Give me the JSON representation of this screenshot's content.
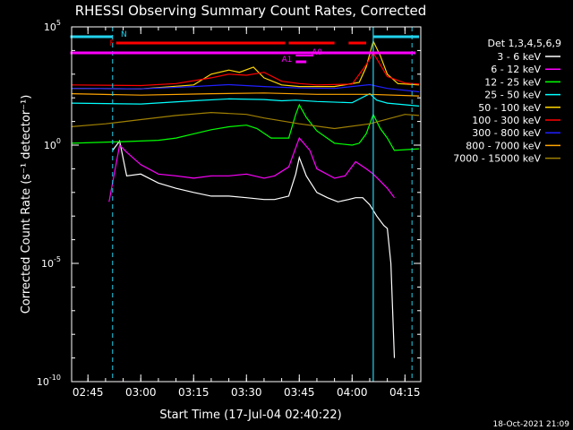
{
  "colors": {
    "background": "#000000",
    "axes": "#ffffff",
    "cyan": "#22d3ee",
    "red": "#ff0000",
    "magenta": "#ff00ff"
  },
  "chart_data": {
    "type": "line",
    "title": "RHESSI Observing Summary Count Rates, Corrected",
    "xlabel": "Start Time (17-Jul-04 02:40:22)",
    "ylabel": "Corrected Count Rate (s⁻¹ detector⁻¹)",
    "footer": "18-Oct-2021 21:09",
    "y_scale": "log",
    "ylim": [
      1e-10,
      100000
    ],
    "xlim": [
      "02:40:22",
      "04:19:30"
    ],
    "yticks": [
      {
        "value": 1e-10,
        "base": "10",
        "exp": "-10"
      },
      {
        "value": 1e-05,
        "base": "10",
        "exp": "-5"
      },
      {
        "value": 1,
        "base": "10",
        "exp": "0"
      },
      {
        "value": 100000,
        "base": "10",
        "exp": "5"
      }
    ],
    "xticks": [
      "02:45",
      "03:00",
      "03:15",
      "03:30",
      "03:45",
      "04:00",
      "04:15"
    ],
    "legend": {
      "title": "Det 1,3,4,5,6,9",
      "placement": "right",
      "entries": [
        {
          "label": "3 - 6 keV",
          "color": "#ffffff"
        },
        {
          "label": "6 - 12 keV",
          "color": "#ff00ff"
        },
        {
          "label": "12 - 25 keV",
          "color": "#00ff00"
        },
        {
          "label": "25 - 50 keV",
          "color": "#00ffff"
        },
        {
          "label": "50 - 100 keV",
          "color": "#ffd700"
        },
        {
          "label": "100 - 300 keV",
          "color": "#ff0000"
        },
        {
          "label": "300 - 800 keV",
          "color": "#2020ff"
        },
        {
          "label": "800 - 7000 keV",
          "color": "#ffa500"
        },
        {
          "label": "7000 - 15000 keV",
          "color": "#a08000"
        }
      ]
    },
    "flag_labels": {
      "N": "N",
      "F": "F",
      "A0": "A0",
      "A1": "A1"
    },
    "flags": {
      "night": [
        [
          "02:40",
          "02:52"
        ],
        [
          "04:06",
          "04:19"
        ]
      ],
      "saa_flag": [
        [
          "02:53",
          "03:41"
        ],
        [
          "03:42",
          "03:55"
        ],
        [
          "03:59",
          "04:04"
        ]
      ],
      "attenuator": [
        [
          "02:40",
          "04:18"
        ]
      ],
      "a0": [
        [
          "03:44",
          "03:49"
        ]
      ],
      "a1": [
        [
          "03:44",
          "03:47"
        ]
      ]
    },
    "vlines_dashed": [
      "02:52",
      "04:17"
    ],
    "vlines_solid": [
      "04:06"
    ],
    "series": [
      {
        "name": "3 - 6 keV",
        "x": [
          "02:52",
          "02:54",
          "02:56",
          "03:00",
          "03:05",
          "03:10",
          "03:15",
          "03:20",
          "03:25",
          "03:30",
          "03:35",
          "03:38",
          "03:42",
          "03:44",
          "03:45",
          "03:47",
          "03:50",
          "03:53",
          "03:56",
          "03:59",
          "04:01",
          "04:03",
          "04:05",
          "04:07",
          "04:09",
          "04:10",
          "04:11",
          "04:12"
        ],
        "y": [
          0.6,
          1.5,
          0.05,
          0.06,
          0.025,
          0.015,
          0.01,
          0.007,
          0.007,
          0.006,
          0.005,
          0.005,
          0.007,
          0.06,
          0.3,
          0.05,
          0.01,
          0.006,
          0.004,
          0.005,
          0.006,
          0.006,
          0.003,
          0.001,
          0.0004,
          0.0003,
          1e-05,
          1e-09
        ]
      },
      {
        "name": "6 - 12 keV",
        "x": [
          "02:51",
          "02:54",
          "02:56",
          "03:00",
          "03:05",
          "03:10",
          "03:15",
          "03:20",
          "03:25",
          "03:30",
          "03:35",
          "03:38",
          "03:42",
          "03:45",
          "03:48",
          "03:50",
          "03:55",
          "03:58",
          "04:01",
          "04:04",
          "04:06",
          "04:08",
          "04:10",
          "04:12"
        ],
        "y": [
          0.004,
          1.0,
          0.5,
          0.15,
          0.06,
          0.05,
          0.04,
          0.05,
          0.05,
          0.06,
          0.04,
          0.05,
          0.12,
          2.0,
          0.6,
          0.1,
          0.04,
          0.05,
          0.2,
          0.1,
          0.06,
          0.03,
          0.015,
          0.006
        ]
      },
      {
        "name": "12 - 25 keV",
        "x": [
          "02:40",
          "02:55",
          "03:00",
          "03:05",
          "03:10",
          "03:15",
          "03:20",
          "03:25",
          "03:30",
          "03:33",
          "03:37",
          "03:42",
          "03:44",
          "03:45",
          "03:47",
          "03:50",
          "03:55",
          "04:00",
          "04:02",
          "04:04",
          "04:06",
          "04:08",
          "04:10",
          "04:12",
          "04:19"
        ],
        "y": [
          1.2,
          1.4,
          1.5,
          1.6,
          2.0,
          3.0,
          4.5,
          6.0,
          7.0,
          5.0,
          2.0,
          2.0,
          20,
          50,
          15,
          4,
          1.2,
          1.0,
          1.2,
          3,
          20,
          5,
          2,
          0.6,
          0.7
        ]
      },
      {
        "name": "25 - 50 keV",
        "x": [
          "02:40",
          "03:00",
          "03:15",
          "03:25",
          "03:35",
          "03:40",
          "03:44",
          "03:50",
          "04:00",
          "04:05",
          "04:07",
          "04:10",
          "04:19"
        ],
        "y": [
          60,
          55,
          75,
          90,
          85,
          75,
          80,
          70,
          62,
          150,
          80,
          60,
          45
        ]
      },
      {
        "name": "50 - 100 keV",
        "x": [
          "02:40",
          "03:00",
          "03:15",
          "03:20",
          "03:25",
          "03:28",
          "03:32",
          "03:35",
          "03:40",
          "03:45",
          "03:55",
          "04:02",
          "04:04",
          "04:06",
          "04:08",
          "04:10",
          "04:13",
          "04:19"
        ],
        "y": [
          250,
          240,
          350,
          1000,
          1500,
          1200,
          2000,
          700,
          350,
          300,
          300,
          450,
          2000,
          25000,
          6000,
          1000,
          400,
          350
        ]
      },
      {
        "name": "100 - 300 keV",
        "x": [
          "02:40",
          "03:00",
          "03:10",
          "03:20",
          "03:25",
          "03:30",
          "03:35",
          "03:40",
          "03:45",
          "03:50",
          "04:00",
          "04:04",
          "04:06",
          "04:08",
          "04:10",
          "04:15",
          "04:19"
        ],
        "y": [
          350,
          330,
          400,
          700,
          1000,
          900,
          1200,
          500,
          400,
          350,
          380,
          2500,
          8000,
          2500,
          800,
          420,
          380
        ]
      },
      {
        "name": "300 - 800 keV",
        "x": [
          "02:40",
          "03:00",
          "03:15",
          "03:25",
          "03:35",
          "03:45",
          "03:55",
          "04:05",
          "04:10",
          "04:19"
        ],
        "y": [
          250,
          240,
          300,
          360,
          300,
          260,
          250,
          360,
          250,
          180
        ]
      },
      {
        "name": "800 - 7000 keV",
        "x": [
          "02:40",
          "03:00",
          "03:20",
          "03:35",
          "03:50",
          "04:05",
          "04:19"
        ],
        "y": [
          150,
          130,
          150,
          160,
          140,
          140,
          120
        ]
      },
      {
        "name": "7000 - 15000 keV",
        "x": [
          "02:40",
          "02:50",
          "03:00",
          "03:10",
          "03:20",
          "03:30",
          "03:35",
          "03:45",
          "03:55",
          "04:05",
          "04:15",
          "04:19"
        ],
        "y": [
          6,
          8,
          12,
          18,
          24,
          20,
          14,
          8,
          5,
          8,
          20,
          18
        ]
      }
    ]
  }
}
